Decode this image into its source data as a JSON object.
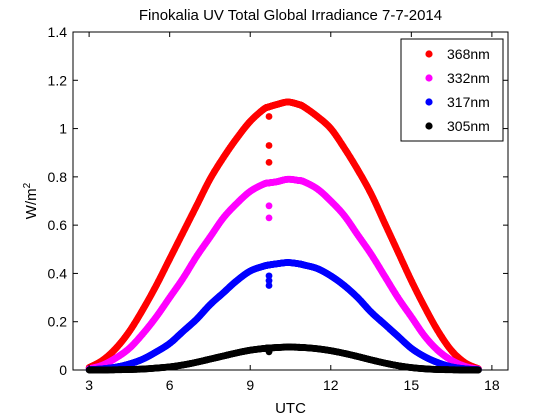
{
  "chart_data": {
    "type": "scatter",
    "title": "Finokalia UV Total Global Irradiance 7-7-2014",
    "xlabel": "UTC",
    "ylabel": "W/m",
    "ylabel_superscript": "2",
    "xlim": [
      2.4,
      18.6
    ],
    "ylim": [
      0,
      1.4
    ],
    "xticks": [
      3,
      6,
      9,
      12,
      15,
      18
    ],
    "xtick_labels": [
      "3",
      "6",
      "9",
      "12",
      "15",
      "18"
    ],
    "yticks": [
      0,
      0.2,
      0.4,
      0.6,
      0.8,
      1.0,
      1.2,
      1.4
    ],
    "ytick_labels": [
      "0",
      "0.2",
      "0.4",
      "0.6",
      "0.8",
      "1",
      "1.2",
      "1.4"
    ],
    "grid": false,
    "legend_position": "top-right",
    "series": [
      {
        "name": "368nm",
        "color": "#ff0000",
        "x": [
          3.0,
          3.5,
          4.0,
          4.5,
          5.0,
          5.5,
          6.0,
          6.5,
          7.0,
          7.5,
          8.0,
          8.5,
          9.0,
          9.5,
          9.7,
          10.0,
          10.4,
          10.8,
          11.0,
          11.5,
          12.0,
          12.5,
          13.0,
          13.5,
          14.0,
          14.5,
          15.0,
          15.5,
          16.0,
          16.5,
          17.0,
          17.5
        ],
        "y": [
          0.01,
          0.04,
          0.09,
          0.16,
          0.25,
          0.35,
          0.46,
          0.57,
          0.68,
          0.79,
          0.88,
          0.96,
          1.03,
          1.08,
          1.09,
          1.1,
          1.11,
          1.1,
          1.09,
          1.05,
          1.0,
          0.92,
          0.83,
          0.73,
          0.61,
          0.49,
          0.37,
          0.26,
          0.16,
          0.08,
          0.03,
          0.005
        ],
        "outliers_x": [
          9.7,
          9.7,
          9.7
        ],
        "outliers_y": [
          1.05,
          0.93,
          0.86
        ]
      },
      {
        "name": "332nm",
        "color": "#ff00ff",
        "x": [
          3.0,
          3.5,
          4.0,
          4.5,
          5.0,
          5.5,
          6.0,
          6.5,
          7.0,
          7.5,
          8.0,
          8.5,
          9.0,
          9.5,
          9.7,
          10.0,
          10.4,
          10.8,
          11.0,
          11.5,
          12.0,
          12.5,
          13.0,
          13.5,
          14.0,
          14.5,
          15.0,
          15.5,
          16.0,
          16.5,
          17.0,
          17.5
        ],
        "y": [
          0.005,
          0.02,
          0.05,
          0.09,
          0.15,
          0.22,
          0.3,
          0.38,
          0.47,
          0.55,
          0.63,
          0.69,
          0.74,
          0.77,
          0.775,
          0.78,
          0.79,
          0.785,
          0.78,
          0.75,
          0.7,
          0.64,
          0.56,
          0.48,
          0.39,
          0.3,
          0.22,
          0.14,
          0.08,
          0.04,
          0.015,
          0.003
        ],
        "outliers_x": [
          9.7,
          9.7
        ],
        "outliers_y": [
          0.68,
          0.63
        ]
      },
      {
        "name": "317nm",
        "color": "#0000ff",
        "x": [
          3.0,
          3.5,
          4.0,
          4.5,
          5.0,
          5.5,
          6.0,
          6.5,
          7.0,
          7.5,
          8.0,
          8.5,
          9.0,
          9.5,
          9.7,
          10.0,
          10.4,
          10.8,
          11.0,
          11.5,
          12.0,
          12.5,
          13.0,
          13.5,
          14.0,
          14.5,
          15.0,
          15.5,
          16.0,
          16.5,
          17.0,
          17.5
        ],
        "y": [
          0.001,
          0.005,
          0.012,
          0.025,
          0.045,
          0.075,
          0.11,
          0.16,
          0.21,
          0.27,
          0.32,
          0.37,
          0.41,
          0.43,
          0.435,
          0.44,
          0.445,
          0.44,
          0.435,
          0.42,
          0.39,
          0.35,
          0.3,
          0.24,
          0.19,
          0.14,
          0.09,
          0.055,
          0.03,
          0.013,
          0.005,
          0.001
        ],
        "outliers_x": [
          9.7,
          9.7,
          9.7
        ],
        "outliers_y": [
          0.39,
          0.37,
          0.35
        ]
      },
      {
        "name": "305nm",
        "color": "#000000",
        "x": [
          3.0,
          3.5,
          4.0,
          4.5,
          5.0,
          5.5,
          6.0,
          6.5,
          7.0,
          7.5,
          8.0,
          8.5,
          9.0,
          9.5,
          9.7,
          10.0,
          10.4,
          10.8,
          11.0,
          11.5,
          12.0,
          12.5,
          13.0,
          13.5,
          14.0,
          14.5,
          15.0,
          15.5,
          16.0,
          16.5,
          17.0,
          17.5
        ],
        "y": [
          0.0,
          0.0,
          0.001,
          0.002,
          0.004,
          0.008,
          0.013,
          0.021,
          0.032,
          0.045,
          0.058,
          0.071,
          0.082,
          0.089,
          0.091,
          0.093,
          0.095,
          0.094,
          0.093,
          0.088,
          0.08,
          0.069,
          0.056,
          0.042,
          0.029,
          0.018,
          0.01,
          0.005,
          0.002,
          0.001,
          0.0,
          0.0
        ],
        "outliers_x": [
          9.7
        ],
        "outliers_y": [
          0.075
        ]
      }
    ]
  }
}
